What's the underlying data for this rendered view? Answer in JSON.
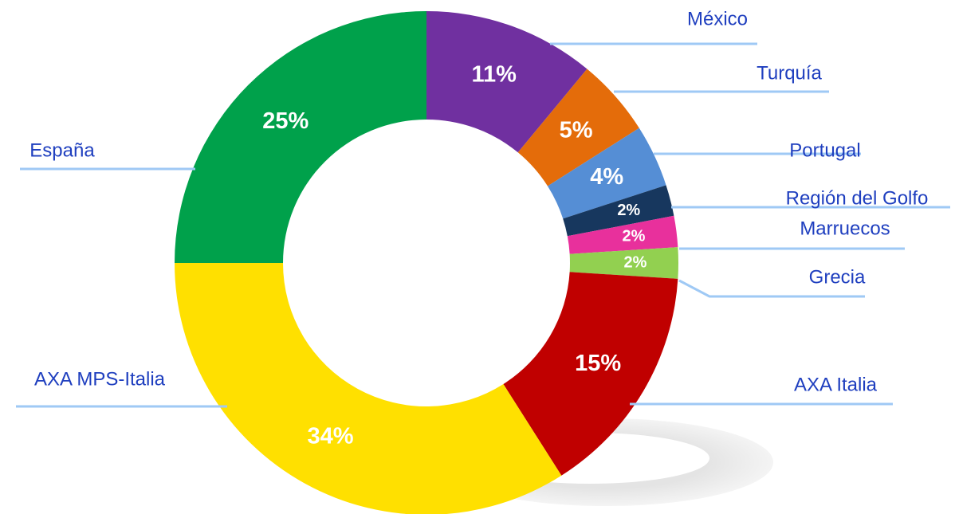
{
  "chart_data": {
    "type": "donut",
    "categories": [
      "México",
      "Turquía",
      "Portugal",
      "Región del Golfo",
      "Marruecos",
      "Grecia",
      "AXA Italia",
      "AXA MPS-Italia",
      "España"
    ],
    "values": [
      11,
      5,
      4,
      2,
      2,
      2,
      15,
      34,
      25
    ],
    "value_labels": [
      "11%",
      "5%",
      "4%",
      "2%",
      "2%",
      "2%",
      "15%",
      "34%",
      "25%"
    ],
    "colors": [
      "#7030a0",
      "#e46c0a",
      "#558ed5",
      "#17375e",
      "#e8309c",
      "#92d050",
      "#c00000",
      "#ffe000",
      "#00a14b"
    ]
  }
}
